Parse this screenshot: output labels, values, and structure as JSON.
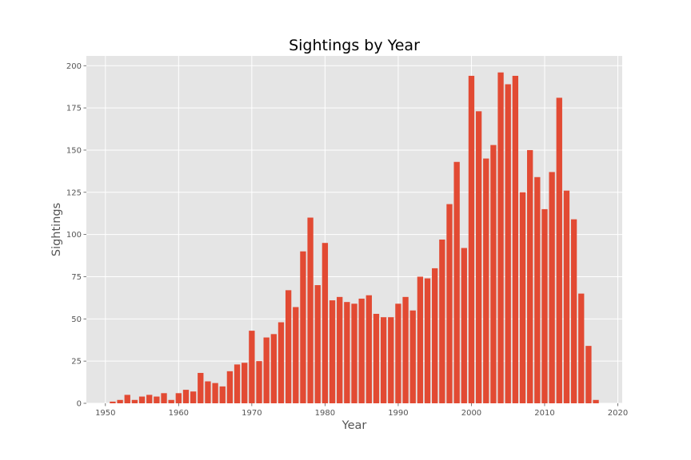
{
  "chart_data": {
    "type": "bar",
    "title": "Sightings by Year",
    "xlabel": "Year",
    "ylabel": "Sightings",
    "xlim": [
      1947.4,
      2020.6
    ],
    "ylim": [
      0,
      205.8
    ],
    "xticks": [
      1950,
      1960,
      1970,
      1980,
      1990,
      2000,
      2010,
      2020
    ],
    "yticks": [
      0,
      25,
      50,
      75,
      100,
      125,
      150,
      175,
      200
    ],
    "grid": true,
    "legend": "none",
    "bar_color": "#E24A33",
    "background_color": "#E5E5E5",
    "grid_color": "#FFFFFF",
    "x": [
      1951,
      1952,
      1953,
      1954,
      1955,
      1956,
      1957,
      1958,
      1959,
      1960,
      1961,
      1962,
      1963,
      1964,
      1965,
      1966,
      1967,
      1968,
      1969,
      1970,
      1971,
      1972,
      1973,
      1974,
      1975,
      1976,
      1977,
      1978,
      1979,
      1980,
      1981,
      1982,
      1983,
      1984,
      1985,
      1986,
      1987,
      1988,
      1989,
      1990,
      1991,
      1992,
      1993,
      1994,
      1995,
      1996,
      1997,
      1998,
      1999,
      2000,
      2001,
      2002,
      2003,
      2004,
      2005,
      2006,
      2007,
      2008,
      2009,
      2010,
      2011,
      2012,
      2013,
      2014,
      2015,
      2016,
      2017
    ],
    "values": [
      1,
      2,
      5,
      2,
      4,
      5,
      4,
      6,
      2,
      6,
      8,
      7,
      18,
      13,
      12,
      10,
      19,
      23,
      24,
      43,
      25,
      39,
      41,
      48,
      67,
      57,
      90,
      110,
      70,
      95,
      61,
      63,
      60,
      59,
      62,
      64,
      53,
      51,
      51,
      59,
      63,
      55,
      75,
      74,
      80,
      97,
      118,
      143,
      92,
      194,
      173,
      145,
      153,
      196,
      189,
      194,
      125,
      150,
      134,
      115,
      137,
      181,
      126,
      109,
      65,
      34,
      2
    ]
  }
}
